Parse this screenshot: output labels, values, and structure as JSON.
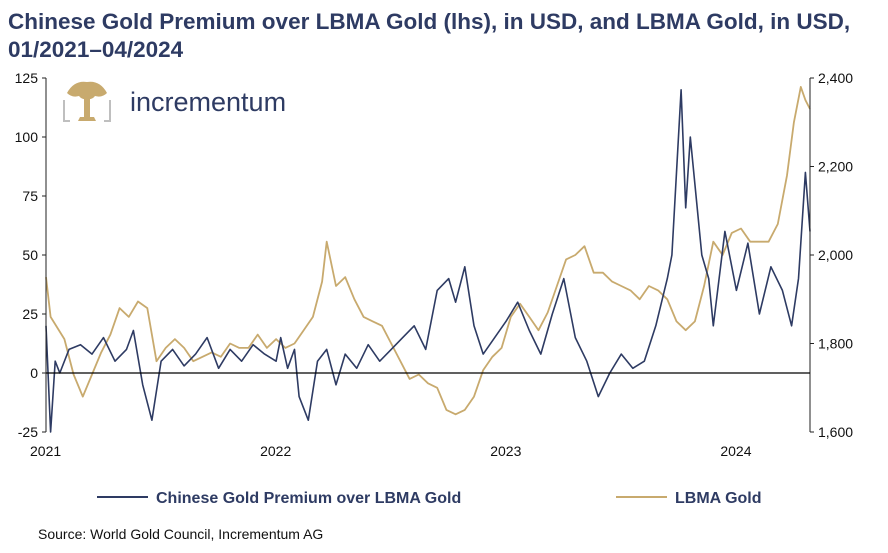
{
  "chart_data": {
    "type": "line",
    "title": "Chinese Gold Premium over LBMA Gold (lhs), in USD, and LBMA Gold, in USD, 01/2021–04/2024",
    "source": "Source: World Gold Council, Incrementum AG",
    "brand": "incrementum",
    "colors": {
      "premium": "#2e3b63",
      "gold": "#c8aa6e",
      "text": "#2e3b63"
    },
    "x_ticks": [
      "2021",
      "2022",
      "2023",
      "2024"
    ],
    "y_left": {
      "ticks": [
        "-25",
        "0",
        "25",
        "50",
        "75",
        "100",
        "125"
      ],
      "range": [
        -25,
        125
      ]
    },
    "y_right": {
      "ticks": [
        "1,600",
        "1,800",
        "2,000",
        "2,200",
        "2,400"
      ],
      "range": [
        1600,
        2400
      ]
    },
    "legend": "bottom",
    "series": [
      {
        "name": "Chinese Gold Premium over LBMA Gold",
        "axis": "left",
        "x": [
          2021.0,
          2021.02,
          2021.04,
          2021.06,
          2021.1,
          2021.15,
          2021.2,
          2021.25,
          2021.3,
          2021.35,
          2021.38,
          2021.42,
          2021.46,
          2021.5,
          2021.55,
          2021.6,
          2021.65,
          2021.7,
          2021.75,
          2021.8,
          2021.85,
          2021.9,
          2021.95,
          2022.0,
          2022.02,
          2022.05,
          2022.08,
          2022.1,
          2022.14,
          2022.18,
          2022.22,
          2022.26,
          2022.3,
          2022.35,
          2022.4,
          2022.45,
          2022.5,
          2022.55,
          2022.6,
          2022.65,
          2022.7,
          2022.75,
          2022.78,
          2022.82,
          2022.86,
          2022.9,
          2022.95,
          2023.0,
          2023.05,
          2023.1,
          2023.15,
          2023.2,
          2023.25,
          2023.3,
          2023.35,
          2023.4,
          2023.45,
          2023.5,
          2023.55,
          2023.6,
          2023.65,
          2023.7,
          2023.72,
          2023.74,
          2023.76,
          2023.78,
          2023.8,
          2023.82,
          2023.85,
          2023.88,
          2023.9,
          2023.95,
          2024.0,
          2024.05,
          2024.1,
          2024.15,
          2024.2,
          2024.24,
          2024.27,
          2024.3,
          2024.32
        ],
        "y": [
          20,
          -25,
          5,
          0,
          10,
          12,
          8,
          15,
          5,
          10,
          18,
          -5,
          -20,
          5,
          10,
          3,
          8,
          15,
          2,
          10,
          5,
          12,
          8,
          5,
          15,
          2,
          10,
          -10,
          -20,
          5,
          10,
          -5,
          8,
          2,
          12,
          5,
          10,
          15,
          20,
          10,
          35,
          40,
          30,
          45,
          20,
          8,
          15,
          22,
          30,
          18,
          8,
          25,
          40,
          15,
          5,
          -10,
          0,
          8,
          2,
          5,
          20,
          40,
          50,
          85,
          120,
          70,
          100,
          80,
          50,
          40,
          20,
          60,
          35,
          55,
          25,
          45,
          35,
          20,
          40,
          85,
          60
        ]
      },
      {
        "name": "LBMA Gold",
        "axis": "right",
        "x": [
          2021.0,
          2021.02,
          2021.05,
          2021.08,
          2021.12,
          2021.16,
          2021.2,
          2021.24,
          2021.28,
          2021.32,
          2021.36,
          2021.4,
          2021.44,
          2021.48,
          2021.52,
          2021.56,
          2021.6,
          2021.64,
          2021.68,
          2021.72,
          2021.76,
          2021.8,
          2021.84,
          2021.88,
          2021.92,
          2021.96,
          2022.0,
          2022.04,
          2022.08,
          2022.12,
          2022.16,
          2022.2,
          2022.22,
          2022.26,
          2022.3,
          2022.34,
          2022.38,
          2022.42,
          2022.46,
          2022.5,
          2022.54,
          2022.58,
          2022.62,
          2022.66,
          2022.7,
          2022.74,
          2022.78,
          2022.82,
          2022.86,
          2022.9,
          2022.94,
          2022.98,
          2023.02,
          2023.06,
          2023.1,
          2023.14,
          2023.18,
          2023.22,
          2023.26,
          2023.3,
          2023.34,
          2023.38,
          2023.42,
          2023.46,
          2023.5,
          2023.54,
          2023.58,
          2023.62,
          2023.66,
          2023.7,
          2023.74,
          2023.78,
          2023.82,
          2023.86,
          2023.9,
          2023.94,
          2023.98,
          2024.02,
          2024.06,
          2024.1,
          2024.14,
          2024.18,
          2024.22,
          2024.25,
          2024.28,
          2024.3,
          2024.32
        ],
        "y": [
          1950,
          1860,
          1835,
          1810,
          1730,
          1680,
          1730,
          1780,
          1820,
          1880,
          1860,
          1895,
          1880,
          1760,
          1790,
          1810,
          1790,
          1760,
          1770,
          1780,
          1770,
          1800,
          1790,
          1790,
          1820,
          1790,
          1810,
          1790,
          1800,
          1830,
          1860,
          1940,
          2030,
          1930,
          1950,
          1900,
          1860,
          1850,
          1840,
          1800,
          1760,
          1720,
          1730,
          1710,
          1700,
          1650,
          1640,
          1650,
          1680,
          1740,
          1770,
          1790,
          1860,
          1890,
          1860,
          1830,
          1870,
          1930,
          1990,
          2000,
          2020,
          1960,
          1960,
          1940,
          1930,
          1920,
          1900,
          1930,
          1920,
          1900,
          1850,
          1830,
          1850,
          1930,
          2030,
          2000,
          2050,
          2060,
          2030,
          2030,
          2030,
          2070,
          2180,
          2300,
          2380,
          2350,
          2330
        ]
      }
    ]
  }
}
